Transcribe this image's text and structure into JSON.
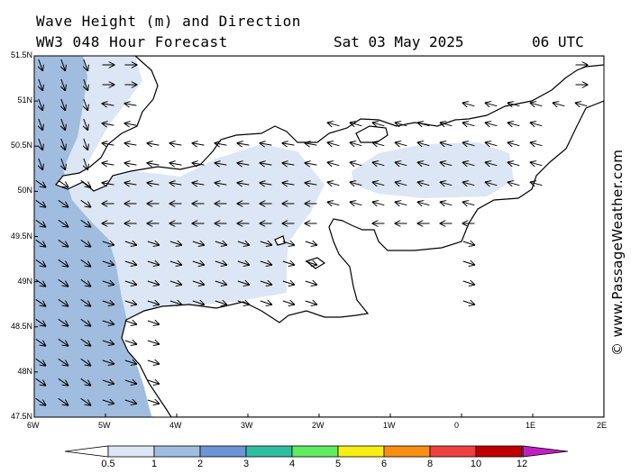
{
  "header": {
    "title_line1": "Wave Height (m) and Direction",
    "title_line2": "WW3 048 Hour Forecast",
    "date": "Sat 03 May 2025",
    "time": "06 UTC"
  },
  "credit": "© www.PassageWeather.com",
  "map": {
    "lon_labels": [
      "6W",
      "5W",
      "4W",
      "3W",
      "2W",
      "1W",
      "0",
      "1E",
      "2E"
    ],
    "lat_labels": [
      "51.5N",
      "51N",
      "50.5N",
      "50N",
      "49.5N",
      "49N",
      "48.5N",
      "48N",
      "47.5N"
    ],
    "colors": {
      "land": "#ffffff",
      "sea_lt_05": "#ffffff",
      "sea_05_1": "#dde6f4",
      "sea_1_2": "#a0bde0",
      "coast": "#000000"
    }
  },
  "colorbar": {
    "labels": [
      "0.5",
      "1",
      "2",
      "3",
      "4",
      "5",
      "6",
      "8",
      "10",
      "12"
    ],
    "colors": [
      "#dde6f4",
      "#a0bde0",
      "#6d94d4",
      "#2dbfa0",
      "#62ec62",
      "#f6ee14",
      "#f88f10",
      "#ee4040",
      "#c00000",
      "#c020c0"
    ]
  }
}
